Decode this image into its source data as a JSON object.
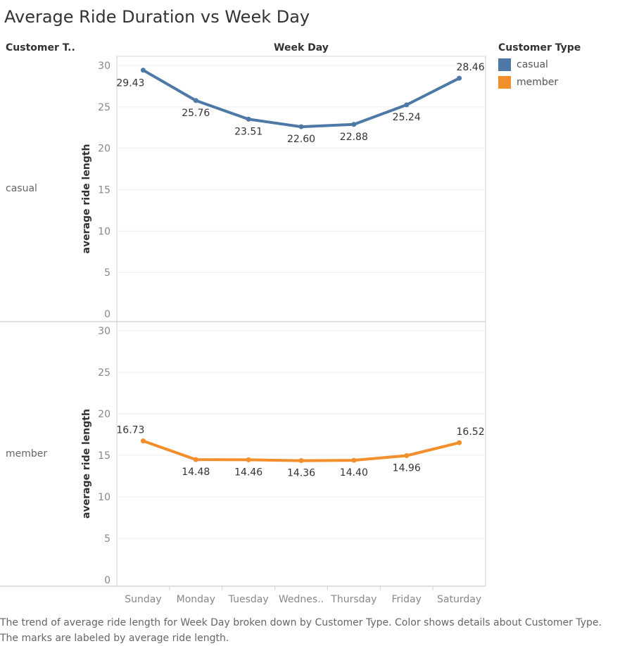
{
  "title": "Average Ride Duration vs Week Day",
  "row_header": "Customer T..",
  "column_header": "Week Day",
  "legend": {
    "title": "Customer Type",
    "items": [
      {
        "label": "casual",
        "color": "#4e79a7"
      },
      {
        "label": "member",
        "color": "#f28e2b"
      }
    ]
  },
  "caption": "The trend of average ride length for Week Day broken down by Customer Type.  Color shows details about Customer Type.  The marks are labeled by average ride length.",
  "chart_data": {
    "type": "line",
    "title": "Average Ride Duration vs Week Day",
    "xlabel": "Week Day",
    "ylabel": "average ride length",
    "categories": [
      "Sunday",
      "Monday",
      "Tuesday",
      "Wednes..",
      "Thursday",
      "Friday",
      "Saturday"
    ],
    "ylim": [
      0,
      30
    ],
    "yticks": [
      0,
      5,
      10,
      15,
      20,
      25,
      30
    ],
    "series": [
      {
        "name": "casual",
        "color": "#4e79a7",
        "values": [
          29.43,
          25.76,
          23.51,
          22.6,
          22.88,
          25.24,
          28.46
        ],
        "labels": [
          "29.43",
          "25.76",
          "23.51",
          "22.60",
          "22.88",
          "25.24",
          "28.46"
        ]
      },
      {
        "name": "member",
        "color": "#f28e2b",
        "values": [
          16.73,
          14.48,
          14.46,
          14.36,
          14.4,
          14.96,
          16.52
        ],
        "labels": [
          "16.73",
          "14.48",
          "14.46",
          "14.36",
          "14.40",
          "14.96",
          "16.52"
        ]
      }
    ]
  }
}
